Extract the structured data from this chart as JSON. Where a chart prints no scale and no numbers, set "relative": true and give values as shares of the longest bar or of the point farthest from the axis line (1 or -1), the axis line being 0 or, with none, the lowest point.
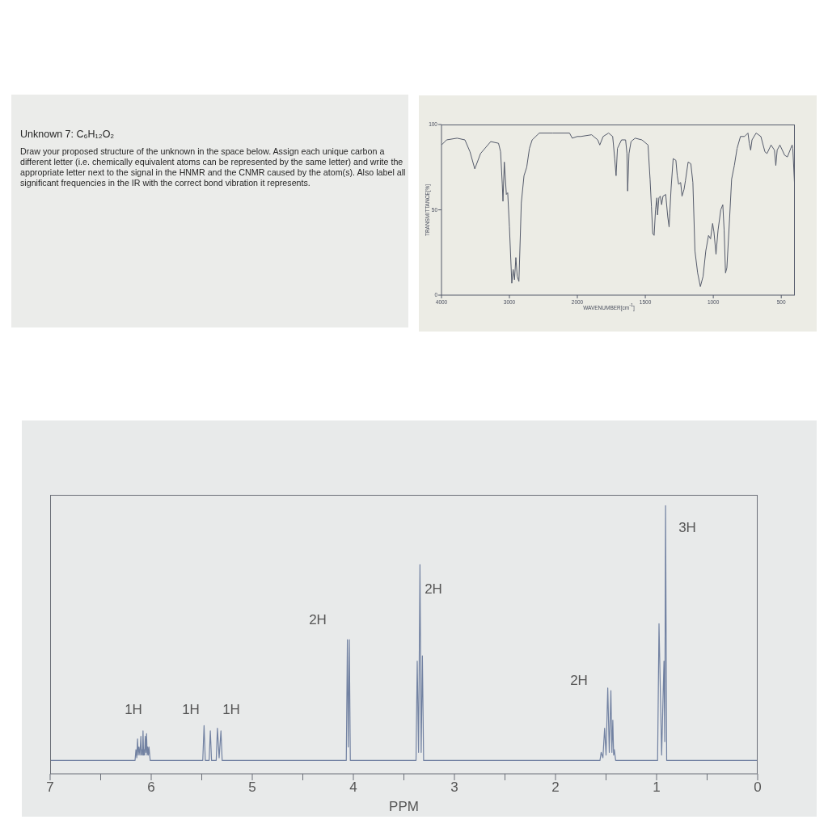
{
  "chart_data": [
    {
      "type": "other",
      "title": "Unknown 7: C₆H₁₂O₂",
      "annotations": [
        "Draw your proposed structure of the unknown in the space below. Assign each unique carbon a different letter (i.e. chemically equivalent atoms can be represented by the same letter) and write the appropriate letter next to the signal in the HNMR and the CNMR caused by the atom(s). Also label all significant frequencies in the IR with the correct bond vibration it represents."
      ]
    },
    {
      "type": "line",
      "ylabel": "TRANSMITTANCE[%]",
      "color": "#555b6b",
      "x": [
        4000,
        3925,
        3770,
        3655,
        3580,
        3510,
        3425,
        3275,
        3160,
        3130,
        3105,
        3095,
        3075,
        3045,
        3025,
        3000,
        2965,
        2945,
        2925,
        2905,
        2885,
        2860,
        2825,
        2785,
        2745,
        2705,
        2665,
        2560,
        2360,
        2115,
        2075,
        2000
      ],
      "values": [
        88,
        91,
        92,
        91,
        84,
        74,
        83,
        90,
        89,
        84,
        65,
        55,
        78,
        59,
        60,
        40,
        7,
        15,
        9,
        22,
        11,
        8,
        54,
        70,
        75,
        86,
        91,
        95,
        95,
        95,
        92,
        93
      ],
      "xlim": [
        4000,
        2000
      ],
      "xticks": [
        4000,
        3000,
        2000
      ],
      "ylim": [
        0,
        100
      ],
      "yticks": [
        0,
        50,
        100
      ]
    },
    {
      "type": "line",
      "xlabel": "WAVENUMBER[cm$^{-1}$]",
      "color": "#555b6b",
      "x": [
        2000,
        1975,
        1895,
        1850,
        1835,
        1810,
        1770,
        1740,
        1725,
        1715,
        1705,
        1675,
        1645,
        1635,
        1630,
        1620,
        1605,
        1575,
        1525,
        1480,
        1465,
        1455,
        1445,
        1435,
        1425,
        1415,
        1410,
        1400,
        1390,
        1380,
        1370,
        1350,
        1335,
        1325,
        1320,
        1310,
        1295,
        1275,
        1265,
        1255,
        1240,
        1230,
        1215,
        1205,
        1185,
        1165,
        1150,
        1135,
        1115,
        1095,
        1075,
        1055,
        1035,
        1020,
        1005,
        995,
        980,
        965,
        945,
        930,
        920,
        910,
        900,
        880,
        865,
        845,
        825,
        800,
        770,
        745,
        735,
        725,
        715,
        685,
        650,
        620,
        605,
        575,
        550,
        540,
        530,
        510,
        475,
        455,
        420,
        415,
        400
      ],
      "values": [
        93,
        93,
        94,
        91,
        88,
        93,
        95,
        93,
        80,
        70,
        86,
        91,
        91,
        83,
        61,
        83,
        90,
        92,
        91,
        88,
        68,
        52,
        36,
        35,
        50,
        57,
        47,
        57,
        58,
        53,
        58,
        59,
        46,
        40,
        48,
        63,
        80,
        79,
        70,
        65,
        66,
        58,
        62,
        67,
        78,
        77,
        66,
        26,
        13,
        5,
        11,
        26,
        35,
        33,
        42,
        37,
        24,
        38,
        50,
        53,
        38,
        13,
        16,
        45,
        68,
        76,
        86,
        93,
        93,
        95,
        89,
        85,
        91,
        95,
        93,
        84,
        83,
        88,
        85,
        76,
        85,
        88,
        82,
        81,
        88,
        86,
        61
      ],
      "xlim": [
        2000,
        400
      ],
      "xticks": [
        1500,
        1000,
        500
      ],
      "ylim": [
        0,
        100
      ],
      "tick_labels": "x"
    },
    {
      "type": "line",
      "xlabel": "PPM",
      "color": "#7282a2",
      "relative": true,
      "x": [
        7,
        6.16,
        6.151,
        6.143,
        6.135,
        6.128,
        6.121,
        6.112,
        6.102,
        6.097,
        6.092,
        6.086,
        6.081,
        6.075,
        6.07,
        6.065,
        6.059,
        6.052,
        6.046,
        6.04,
        6.035,
        6.028,
        6.022,
        6.01,
        5.49,
        5.477,
        5.465,
        5.427,
        5.415,
        5.403,
        5.357,
        5.345,
        5.328,
        5.31,
        5.298,
        4.07,
        4.059,
        4.05,
        4.04,
        4.03,
        3.38,
        3.368,
        3.355,
        3.341,
        3.329,
        3.317,
        3.305,
        1.56,
        1.548,
        1.531,
        1.514,
        1.5,
        1.483,
        1.468,
        1.452,
        1.442,
        1.433,
        1.425,
        1.418,
        1.405,
        0.99,
        0.976,
        0.95,
        0.927,
        0.919,
        0.911,
        0.9,
        0
      ],
      "values": [
        0.05,
        0.05,
        0.09,
        0.06,
        0.13,
        0.07,
        0.1,
        0.07,
        0.14,
        0.07,
        0.09,
        0.07,
        0.16,
        0.07,
        0.09,
        0.07,
        0.14,
        0.08,
        0.15,
        0.07,
        0.1,
        0.07,
        0.1,
        0.05,
        0.05,
        0.18,
        0.05,
        0.05,
        0.16,
        0.05,
        0.05,
        0.17,
        0.06,
        0.16,
        0.05,
        0.05,
        0.5,
        0.1,
        0.5,
        0.05,
        0.05,
        0.42,
        0.08,
        0.78,
        0.08,
        0.44,
        0.05,
        0.05,
        0.08,
        0.06,
        0.17,
        0.07,
        0.32,
        0.08,
        0.31,
        0.08,
        0.2,
        0.07,
        0.09,
        0.05,
        0.05,
        0.56,
        0.07,
        0.42,
        0.12,
        1,
        0.05,
        0.05
      ],
      "xlim": [
        7,
        0
      ],
      "xticks": [
        7,
        {
          "value": 6.5,
          "label": null
        },
        6,
        {
          "value": 5.5,
          "label": null
        },
        5,
        {
          "value": 4.5,
          "label": null
        },
        4,
        {
          "value": 3.5,
          "label": null
        },
        3,
        {
          "value": 2.5,
          "label": null
        },
        2,
        {
          "value": 1.5,
          "label": null
        },
        1,
        {
          "value": 0.5,
          "label": null
        },
        0
      ],
      "annotations": [
        "1H",
        "1H",
        "1H",
        "2H",
        "2H",
        "2H",
        "3H"
      ]
    }
  ]
}
